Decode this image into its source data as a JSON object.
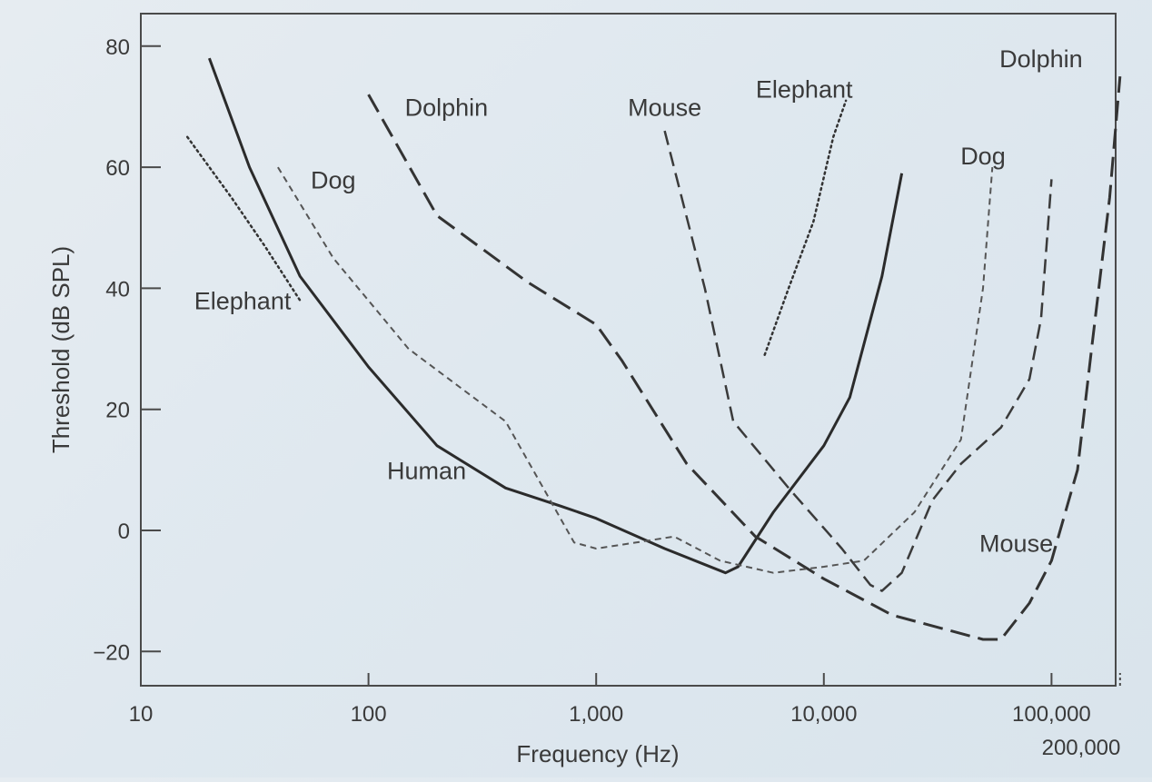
{
  "chart_data": {
    "type": "line",
    "xlabel": "Frequency (Hz)",
    "ylabel": "Threshold (dB SPL)",
    "x_scale": "log",
    "xlim": [
      10,
      200000
    ],
    "ylim": [
      -25,
      85
    ],
    "grid": false,
    "x_ticks": [
      10,
      100,
      1000,
      10000,
      100000,
      200000
    ],
    "x_tick_labels": [
      "10",
      "100",
      "1,000",
      "10,000",
      "100,000",
      "200,000"
    ],
    "y_ticks": [
      -20,
      0,
      20,
      40,
      60,
      80
    ],
    "y_tick_labels": [
      "−20",
      "0",
      "20",
      "40",
      "60",
      "80"
    ],
    "series": [
      {
        "name": "Human",
        "style": "solid",
        "color": "#2b2b2b",
        "points": [
          [
            20,
            78
          ],
          [
            30,
            60
          ],
          [
            50,
            42
          ],
          [
            100,
            27
          ],
          [
            200,
            14
          ],
          [
            400,
            7
          ],
          [
            700,
            4
          ],
          [
            1000,
            2
          ],
          [
            2000,
            -3
          ],
          [
            3700,
            -7
          ],
          [
            4200,
            -6
          ],
          [
            6000,
            3
          ],
          [
            10000,
            14
          ],
          [
            13000,
            22
          ],
          [
            18000,
            42
          ],
          [
            22000,
            59
          ]
        ]
      },
      {
        "name": "Dolphin",
        "style": "long-dash",
        "color": "#333333",
        "points": [
          [
            100,
            72
          ],
          [
            200,
            52
          ],
          [
            500,
            41
          ],
          [
            1000,
            34
          ],
          [
            1300,
            28
          ],
          [
            2500,
            11
          ],
          [
            5000,
            -1
          ],
          [
            10000,
            -8
          ],
          [
            20000,
            -14
          ],
          [
            50000,
            -18
          ],
          [
            60000,
            -18
          ],
          [
            80000,
            -12
          ],
          [
            100000,
            -5
          ],
          [
            130000,
            10
          ],
          [
            150000,
            30
          ],
          [
            180000,
            55
          ],
          [
            200000,
            75
          ]
        ]
      },
      {
        "name": "Mouse",
        "style": "dash",
        "color": "#3a3a3a",
        "points": [
          [
            2000,
            66
          ],
          [
            3000,
            40
          ],
          [
            4000,
            18
          ],
          [
            7000,
            7
          ],
          [
            12000,
            -3
          ],
          [
            16000,
            -9
          ],
          [
            18000,
            -10
          ],
          [
            22000,
            -7
          ],
          [
            30000,
            5
          ],
          [
            40000,
            11
          ],
          [
            60000,
            17
          ],
          [
            80000,
            25
          ],
          [
            90000,
            35
          ],
          [
            100000,
            58
          ]
        ]
      },
      {
        "name": "Dog",
        "style": "short-dash",
        "color": "#555555",
        "points": [
          [
            40,
            60
          ],
          [
            70,
            45
          ],
          [
            150,
            30
          ],
          [
            400,
            18
          ],
          [
            800,
            -2
          ],
          [
            1000,
            -3
          ],
          [
            1500,
            -2
          ],
          [
            2200,
            -1
          ],
          [
            3500,
            -5
          ],
          [
            6000,
            -7
          ],
          [
            10000,
            -6
          ],
          [
            15000,
            -5
          ],
          [
            25000,
            3
          ],
          [
            40000,
            15
          ],
          [
            50000,
            40
          ],
          [
            55000,
            60
          ]
        ]
      },
      {
        "name": "Elephant",
        "style": "dotted",
        "color": "#333333",
        "segments": [
          [
            [
              16,
              65
            ],
            [
              25,
              55
            ],
            [
              35,
              47
            ],
            [
              50,
              38
            ]
          ],
          [
            [
              5500,
              29
            ],
            [
              7000,
              40
            ],
            [
              9000,
              51
            ],
            [
              11000,
              65
            ],
            [
              12500,
              71
            ]
          ]
        ]
      }
    ],
    "labels": [
      {
        "text": "Human",
        "x": 180,
        "y": 10
      },
      {
        "text": "Dolphin",
        "x": 220,
        "y": 70
      },
      {
        "text": "Dolphin",
        "x": 90000,
        "y": 78
      },
      {
        "text": "Mouse",
        "x": 2000,
        "y": 70
      },
      {
        "text": "Mouse",
        "x": 70000,
        "y": -2
      },
      {
        "text": "Dog",
        "x": 70,
        "y": 58
      },
      {
        "text": "Dog",
        "x": 50000,
        "y": 62
      },
      {
        "text": "Elephant",
        "x": 28,
        "y": 38
      },
      {
        "text": "Elephant",
        "x": 8200,
        "y": 73
      }
    ]
  }
}
